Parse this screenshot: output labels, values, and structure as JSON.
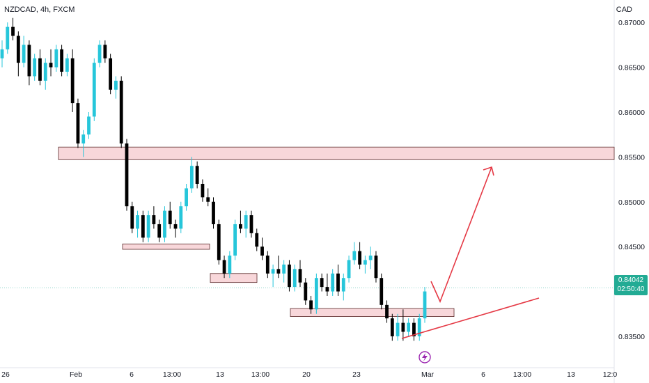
{
  "header": {
    "symbol_label": "NZDCAD, 4h, FXCM",
    "currency": "CAD"
  },
  "current_price": {
    "value": "0.84042",
    "countdown": "02:50:40"
  },
  "chart_data": {
    "type": "candlestick",
    "y_axis": {
      "ticks": [
        "0.87000",
        "0.86500",
        "0.86000",
        "0.85500",
        "0.85000",
        "0.84500",
        "0.83500"
      ],
      "tick_values": [
        0.87,
        0.865,
        0.86,
        0.855,
        0.85,
        0.845,
        0.835
      ],
      "range": [
        0.8315,
        0.8725
      ]
    },
    "x_axis": {
      "ticks": [
        "26",
        "Feb",
        "6",
        "13:00",
        "13",
        "13:00",
        "20",
        "23",
        "Mar",
        "6",
        "13:00",
        "13",
        "12:0"
      ]
    },
    "last_price": 0.84042,
    "zones": [
      {
        "from": 0.8547,
        "to": 0.8561
      },
      {
        "from": 0.8447,
        "to": 0.8453
      },
      {
        "from": 0.841,
        "to": 0.842
      },
      {
        "from": 0.8372,
        "to": 0.8381
      }
    ],
    "projection_arrow": {
      "points": [
        [
          0.8391
        ],
        [
          0.8378
        ],
        [
          0.8546
        ]
      ]
    },
    "trendline": {
      "from": 0.8337,
      "to": 0.8382
    },
    "candles": [
      [
        0.866,
        0.868,
        0.865,
        0.867
      ],
      [
        0.867,
        0.87,
        0.8665,
        0.8695
      ],
      [
        0.8695,
        0.8705,
        0.868,
        0.8685
      ],
      [
        0.8685,
        0.869,
        0.864,
        0.8655
      ],
      [
        0.8655,
        0.8685,
        0.865,
        0.8675
      ],
      [
        0.8675,
        0.868,
        0.863,
        0.864
      ],
      [
        0.864,
        0.8665,
        0.8635,
        0.866
      ],
      [
        0.866,
        0.867,
        0.863,
        0.8635
      ],
      [
        0.8635,
        0.866,
        0.8625,
        0.8655
      ],
      [
        0.8655,
        0.867,
        0.864,
        0.865
      ],
      [
        0.865,
        0.8675,
        0.8645,
        0.867
      ],
      [
        0.867,
        0.8675,
        0.864,
        0.8645
      ],
      [
        0.8645,
        0.8665,
        0.864,
        0.866
      ],
      [
        0.866,
        0.867,
        0.86,
        0.861
      ],
      [
        0.861,
        0.8615,
        0.856,
        0.8565
      ],
      [
        0.8565,
        0.858,
        0.855,
        0.8575
      ],
      [
        0.8575,
        0.86,
        0.857,
        0.8595
      ],
      [
        0.8595,
        0.866,
        0.859,
        0.8655
      ],
      [
        0.8655,
        0.868,
        0.865,
        0.8675
      ],
      [
        0.8675,
        0.868,
        0.8655,
        0.866
      ],
      [
        0.866,
        0.8665,
        0.862,
        0.8625
      ],
      [
        0.8625,
        0.864,
        0.8615,
        0.8635
      ],
      [
        0.8635,
        0.864,
        0.856,
        0.8565
      ],
      [
        0.8565,
        0.857,
        0.849,
        0.8495
      ],
      [
        0.8495,
        0.85,
        0.8465,
        0.847
      ],
      [
        0.847,
        0.849,
        0.846,
        0.8485
      ],
      [
        0.8485,
        0.849,
        0.8455,
        0.846
      ],
      [
        0.846,
        0.849,
        0.8455,
        0.8485
      ],
      [
        0.8485,
        0.8495,
        0.847,
        0.8475
      ],
      [
        0.8475,
        0.848,
        0.8455,
        0.846
      ],
      [
        0.846,
        0.8495,
        0.8455,
        0.849
      ],
      [
        0.849,
        0.85,
        0.847,
        0.8475
      ],
      [
        0.8475,
        0.848,
        0.846,
        0.847
      ],
      [
        0.847,
        0.85,
        0.8465,
        0.8495
      ],
      [
        0.8495,
        0.852,
        0.849,
        0.8515
      ],
      [
        0.8515,
        0.855,
        0.851,
        0.854
      ],
      [
        0.854,
        0.8545,
        0.8515,
        0.852
      ],
      [
        0.852,
        0.8525,
        0.85,
        0.8505
      ],
      [
        0.8505,
        0.8515,
        0.8495,
        0.85
      ],
      [
        0.85,
        0.8505,
        0.847,
        0.8475
      ],
      [
        0.8475,
        0.848,
        0.843,
        0.8435
      ],
      [
        0.8435,
        0.844,
        0.8415,
        0.842
      ],
      [
        0.842,
        0.8445,
        0.8415,
        0.844
      ],
      [
        0.844,
        0.848,
        0.8435,
        0.8475
      ],
      [
        0.8475,
        0.849,
        0.8465,
        0.847
      ],
      [
        0.847,
        0.849,
        0.846,
        0.8485
      ],
      [
        0.8485,
        0.849,
        0.846,
        0.8465
      ],
      [
        0.8465,
        0.847,
        0.8445,
        0.845
      ],
      [
        0.845,
        0.846,
        0.8435,
        0.844
      ],
      [
        0.844,
        0.8445,
        0.8415,
        0.842
      ],
      [
        0.842,
        0.843,
        0.8405,
        0.8425
      ],
      [
        0.8425,
        0.844,
        0.8415,
        0.842
      ],
      [
        0.842,
        0.8435,
        0.841,
        0.843
      ],
      [
        0.843,
        0.8435,
        0.84,
        0.8405
      ],
      [
        0.8405,
        0.843,
        0.84,
        0.8425
      ],
      [
        0.8425,
        0.8435,
        0.8405,
        0.841
      ],
      [
        0.841,
        0.8415,
        0.8385,
        0.839
      ],
      [
        0.839,
        0.8395,
        0.8375,
        0.838
      ],
      [
        0.838,
        0.842,
        0.8375,
        0.8415
      ],
      [
        0.8415,
        0.842,
        0.84,
        0.8405
      ],
      [
        0.8405,
        0.842,
        0.8395,
        0.84
      ],
      [
        0.84,
        0.8425,
        0.8395,
        0.842
      ],
      [
        0.842,
        0.843,
        0.8395,
        0.84
      ],
      [
        0.84,
        0.842,
        0.839,
        0.8415
      ],
      [
        0.8415,
        0.844,
        0.841,
        0.8435
      ],
      [
        0.8435,
        0.8455,
        0.843,
        0.8445
      ],
      [
        0.8445,
        0.8455,
        0.8425,
        0.843
      ],
      [
        0.843,
        0.844,
        0.842,
        0.8435
      ],
      [
        0.8435,
        0.845,
        0.8425,
        0.844
      ],
      [
        0.844,
        0.8445,
        0.841,
        0.8415
      ],
      [
        0.8415,
        0.842,
        0.838,
        0.8385
      ],
      [
        0.8385,
        0.839,
        0.8365,
        0.837
      ],
      [
        0.837,
        0.8375,
        0.8345,
        0.835
      ],
      [
        0.835,
        0.8375,
        0.8345,
        0.8365
      ],
      [
        0.8365,
        0.838,
        0.8345,
        0.8355
      ],
      [
        0.8355,
        0.837,
        0.835,
        0.8365
      ],
      [
        0.8365,
        0.837,
        0.8345,
        0.835
      ],
      [
        0.835,
        0.8375,
        0.8345,
        0.837
      ],
      [
        0.837,
        0.8405,
        0.8365,
        0.84
      ]
    ]
  }
}
